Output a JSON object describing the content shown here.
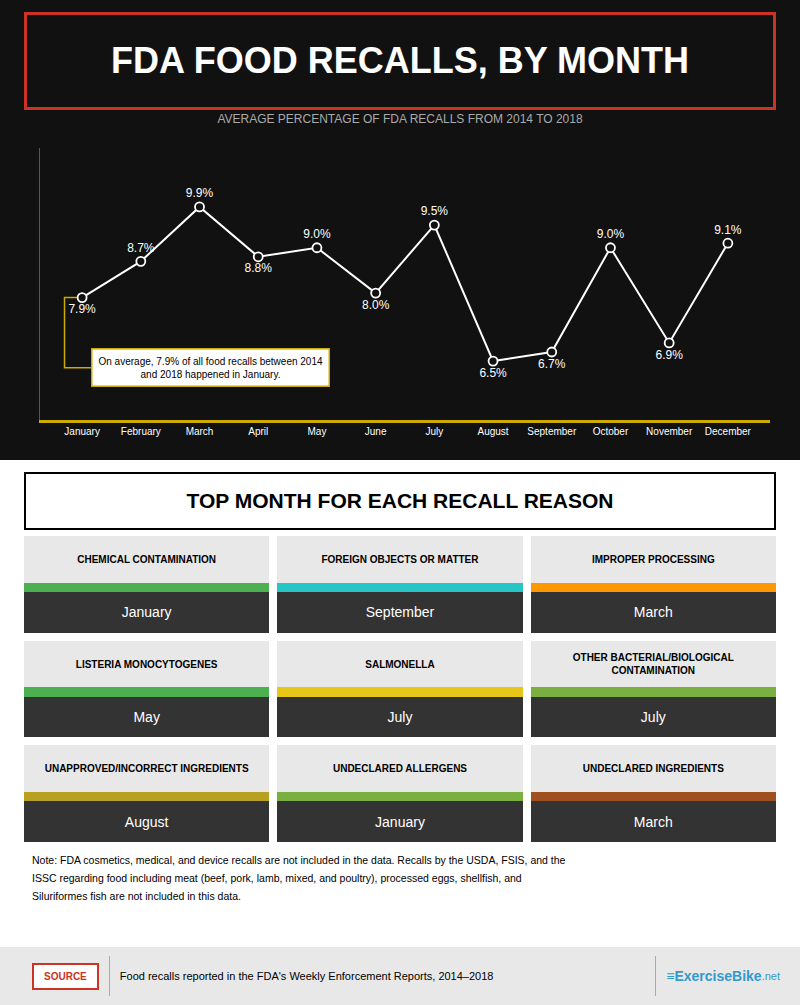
{
  "chart_data": {
    "type": "line",
    "title": "FDA FOOD RECALLS, BY MONTH",
    "subtitle": "AVERAGE PERCENTAGE OF FDA RECALLS FROM 2014 TO 2018",
    "categories": [
      "January",
      "February",
      "March",
      "April",
      "May",
      "June",
      "July",
      "August",
      "September",
      "October",
      "November",
      "December"
    ],
    "values": [
      7.9,
      8.7,
      9.9,
      8.8,
      9.0,
      8.0,
      9.5,
      6.5,
      6.7,
      9.0,
      6.9,
      9.1
    ],
    "value_labels": [
      "7.9%",
      "8.7%",
      "9.9%",
      "8.8%",
      "9.0%",
      "8.0%",
      "9.5%",
      "6.5%",
      "6.7%",
      "9.0%",
      "6.9%",
      "9.1%"
    ],
    "data_labels": true,
    "color": "#ffffff",
    "marker": "circle-open",
    "ylim": [
      5.2,
      11.2
    ],
    "tick_labels": "x",
    "grid": false,
    "annotations": [
      "On average, 7.9% of all food recalls between 2014\nand 2018 happened in January."
    ]
  },
  "section2_title": "TOP MONTH FOR EACH RECALL REASON",
  "table": [
    {
      "label": "CHEMICAL CONTAMINATION",
      "month": "January",
      "color": "#4caf50"
    },
    {
      "label": "FOREIGN OBJECTS OR MATTER",
      "month": "September",
      "color": "#26c6c6"
    },
    {
      "label": "IMPROPER PROCESSING",
      "month": "March",
      "color": "#ff9800"
    },
    {
      "label": "LISTERIA MONOCYTOGENES",
      "month": "May",
      "color": "#4caf50"
    },
    {
      "label": "SALMONELLA",
      "month": "July",
      "color": "#e6c619"
    },
    {
      "label": "OTHER BACTERIAL/BIOLOGICAL\nCONTAMINATION",
      "month": "July",
      "color": "#7ab040"
    },
    {
      "label": "UNAPPROVED/INCORRECT INGREDIENTS",
      "month": "August",
      "color": "#b8a020"
    },
    {
      "label": "UNDECLARED ALLERGENS",
      "month": "January",
      "color": "#7ab040"
    },
    {
      "label": "UNDECLARED INGREDIENTS",
      "month": "March",
      "color": "#a05020"
    }
  ],
  "note": "Note: FDA cosmetics, medical, and device recalls are not included in the data. Recalls by the USDA, FSIS, and the\nISSC regarding food including meat (beef, pork, lamb, mixed, and poultry), processed eggs, shellfish, and\nSiluriformes fish are not included in this data.",
  "source_label": "SOURCE",
  "source_text": "Food recalls reported in the FDA's Weekly Enforcement Reports, 2014–2018",
  "logo": [
    "≡ExerciseBike",
    ".net"
  ]
}
